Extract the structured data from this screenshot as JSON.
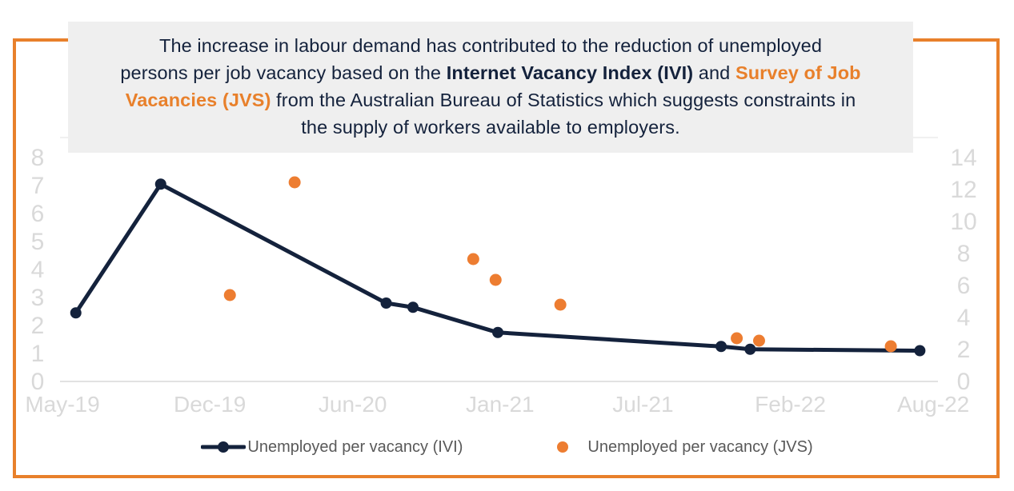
{
  "header": {
    "segments": [
      {
        "text": "The increase in labour demand has contributed to the reduction of unemployed\npersons per job vacancy based on the ",
        "style": "normal"
      },
      {
        "text": "Internet Vacancy Index (IVI)",
        "style": "bold"
      },
      {
        "text": " and ",
        "style": "normal"
      },
      {
        "text": "Survey of Job\nVacancies (JVS)",
        "style": "orange"
      },
      {
        "text": " from the Australian Bureau of Statistics which suggests constraints in\nthe supply of workers available to employers.",
        "style": "normal"
      }
    ]
  },
  "chart_data": {
    "type": "line+scatter",
    "x_unit": "months since May-2019",
    "x_ticks": [
      {
        "month": 0,
        "label": "May-19"
      },
      {
        "month": 6.6,
        "label": "Dec-19"
      },
      {
        "month": 13,
        "label": "Jun-20"
      },
      {
        "month": 19.6,
        "label": "Jan-21"
      },
      {
        "month": 26,
        "label": "Jul-21"
      },
      {
        "month": 32.6,
        "label": "Feb-22"
      },
      {
        "month": 39,
        "label": "Aug-22"
      }
    ],
    "left_axis": {
      "min": 0,
      "max": 8,
      "tick_labels": [
        "0",
        "1",
        "2",
        "3",
        "4",
        "5",
        "6",
        "7",
        "8"
      ],
      "ticks": [
        0,
        1,
        2,
        3,
        4,
        5,
        6,
        7,
        8
      ]
    },
    "right_axis": {
      "min": 0,
      "max": 14,
      "tick_labels": [
        "0",
        "2",
        "4",
        "6",
        "8",
        "10",
        "12",
        "14"
      ],
      "ticks": [
        0,
        2,
        4,
        6,
        8,
        10,
        12,
        14
      ]
    },
    "grid": "baseline and plot-top border only",
    "series": [
      {
        "name": "Unemployed per vacancy (IVI)",
        "type": "line",
        "axis": "left",
        "color": "#14223C",
        "points": [
          {
            "month": 0.6,
            "value": 2.45
          },
          {
            "month": 4.4,
            "value": 7.05
          },
          {
            "month": 14.5,
            "value": 2.8
          },
          {
            "month": 15.7,
            "value": 2.65
          },
          {
            "month": 19.5,
            "value": 1.75
          },
          {
            "month": 29.5,
            "value": 1.25
          },
          {
            "month": 30.8,
            "value": 1.15
          },
          {
            "month": 38.4,
            "value": 1.1
          }
        ]
      },
      {
        "name": "Unemployed per vacancy (JVS)",
        "type": "scatter",
        "axis": "right",
        "color": "#ED7D31",
        "points": [
          {
            "month": 7.5,
            "value": 5.4
          },
          {
            "month": 10.4,
            "value": 12.45
          },
          {
            "month": 18.4,
            "value": 7.65
          },
          {
            "month": 19.4,
            "value": 6.35
          },
          {
            "month": 22.3,
            "value": 4.8
          },
          {
            "month": 30.2,
            "value": 2.7
          },
          {
            "month": 31.2,
            "value": 2.55
          },
          {
            "month": 37.1,
            "value": 2.2
          }
        ]
      }
    ],
    "legend": [
      {
        "label": "Unemployed per vacancy (IVI)",
        "marker": "line-dot",
        "color": "#14223C"
      },
      {
        "label": "Unemployed per vacancy (JVS)",
        "marker": "dot",
        "color": "#ED7D31"
      }
    ],
    "legend_position": "bottom-center"
  },
  "colors": {
    "navy": "#14223C",
    "orange_accent": "#E8802B",
    "orange_dot": "#ED7D31",
    "title_background": "#EFEFEF",
    "axis_label_gray": "#D9D9D9",
    "legend_text_gray": "#595959",
    "gridline_gray": "#D9D9D9"
  }
}
